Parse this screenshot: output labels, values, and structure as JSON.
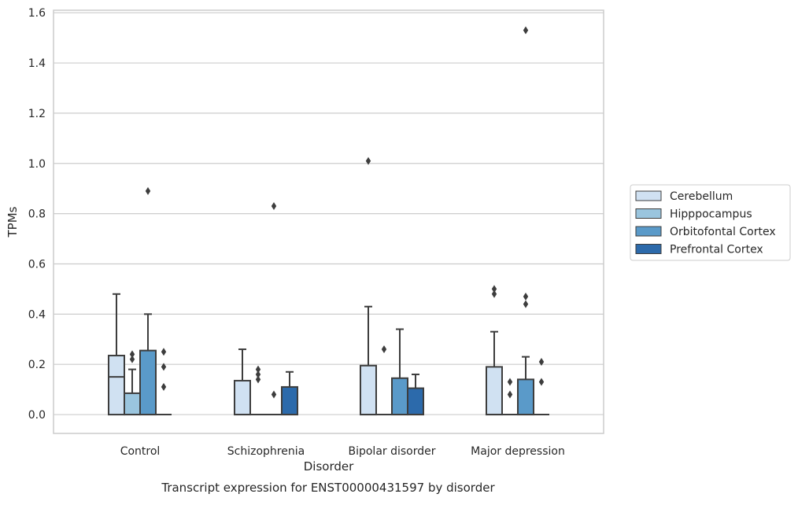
{
  "chart_data": {
    "type": "box",
    "title": "",
    "caption": "Transcript expression for ENST00000431597 by disorder",
    "xlabel": "Disorder",
    "ylabel": "TPMs",
    "ylim": [
      -0.075,
      1.61
    ],
    "yticks": [
      0.0,
      0.2,
      0.4,
      0.6,
      0.8,
      1.0,
      1.2,
      1.4,
      1.6
    ],
    "ytick_labels": [
      "0.0",
      "0.2",
      "0.4",
      "0.6",
      "0.8",
      "1.0",
      "1.2",
      "1.4",
      "1.6"
    ],
    "grid": "horizontal",
    "legend_position": "right-center",
    "categories": [
      "Control",
      "Schizophrenia",
      "Bipolar disorder",
      "Major depression"
    ],
    "series": [
      {
        "name": "Cerebellum",
        "color": "#d0e1f2",
        "boxes": [
          {
            "q1": 0.0,
            "median": 0.15,
            "q3": 0.235,
            "whislo": 0.0,
            "whishi": 0.48,
            "fliers": []
          },
          {
            "q1": 0.0,
            "median": 0.0,
            "q3": 0.135,
            "whislo": 0.0,
            "whishi": 0.26,
            "fliers": []
          },
          {
            "q1": 0.0,
            "median": 0.0,
            "q3": 0.195,
            "whislo": 0.0,
            "whishi": 0.43,
            "fliers": [
              1.01
            ]
          },
          {
            "q1": 0.0,
            "median": 0.0,
            "q3": 0.19,
            "whislo": 0.0,
            "whishi": 0.33,
            "fliers": [
              0.48,
              0.5
            ]
          }
        ]
      },
      {
        "name": "Hipppocampus",
        "color": "#9ac5de",
        "boxes": [
          {
            "q1": 0.0,
            "median": 0.0,
            "q3": 0.085,
            "whislo": 0.0,
            "whishi": 0.18,
            "fliers": [
              0.22,
              0.24
            ]
          },
          {
            "q1": 0.0,
            "median": 0.0,
            "q3": 0.0,
            "whislo": 0.0,
            "whishi": 0.0,
            "fliers": [
              0.14,
              0.16,
              0.18
            ]
          },
          {
            "q1": 0.0,
            "median": 0.0,
            "q3": 0.0,
            "whislo": 0.0,
            "whishi": 0.0,
            "fliers": [
              0.26
            ]
          },
          {
            "q1": 0.0,
            "median": 0.0,
            "q3": 0.0,
            "whislo": 0.0,
            "whishi": 0.0,
            "fliers": [
              0.08,
              0.13
            ]
          }
        ]
      },
      {
        "name": "Orbitofontal Cortex",
        "color": "#5a9ac9",
        "boxes": [
          {
            "q1": 0.0,
            "median": 0.0,
            "q3": 0.255,
            "whislo": 0.0,
            "whishi": 0.4,
            "fliers": [
              0.89
            ]
          },
          {
            "q1": 0.0,
            "median": 0.0,
            "q3": 0.0,
            "whislo": 0.0,
            "whishi": 0.0,
            "fliers": [
              0.08,
              0.83
            ]
          },
          {
            "q1": 0.0,
            "median": 0.0,
            "q3": 0.145,
            "whislo": 0.0,
            "whishi": 0.34,
            "fliers": []
          },
          {
            "q1": 0.0,
            "median": 0.0,
            "q3": 0.14,
            "whislo": 0.0,
            "whishi": 0.23,
            "fliers": [
              0.44,
              0.47,
              1.53
            ]
          }
        ]
      },
      {
        "name": "Prefrontal Cortex",
        "color": "#2c6aab",
        "boxes": [
          {
            "q1": 0.0,
            "median": 0.0,
            "q3": 0.0,
            "whislo": 0.0,
            "whishi": 0.0,
            "fliers": [
              0.11,
              0.19,
              0.25
            ]
          },
          {
            "q1": 0.0,
            "median": 0.0,
            "q3": 0.11,
            "whislo": 0.0,
            "whishi": 0.17,
            "fliers": []
          },
          {
            "q1": 0.0,
            "median": 0.0,
            "q3": 0.105,
            "whislo": 0.0,
            "whishi": 0.16,
            "fliers": []
          },
          {
            "q1": 0.0,
            "median": 0.0,
            "q3": 0.0,
            "whislo": 0.0,
            "whishi": 0.0,
            "fliers": [
              0.13,
              0.21
            ]
          }
        ]
      }
    ]
  }
}
